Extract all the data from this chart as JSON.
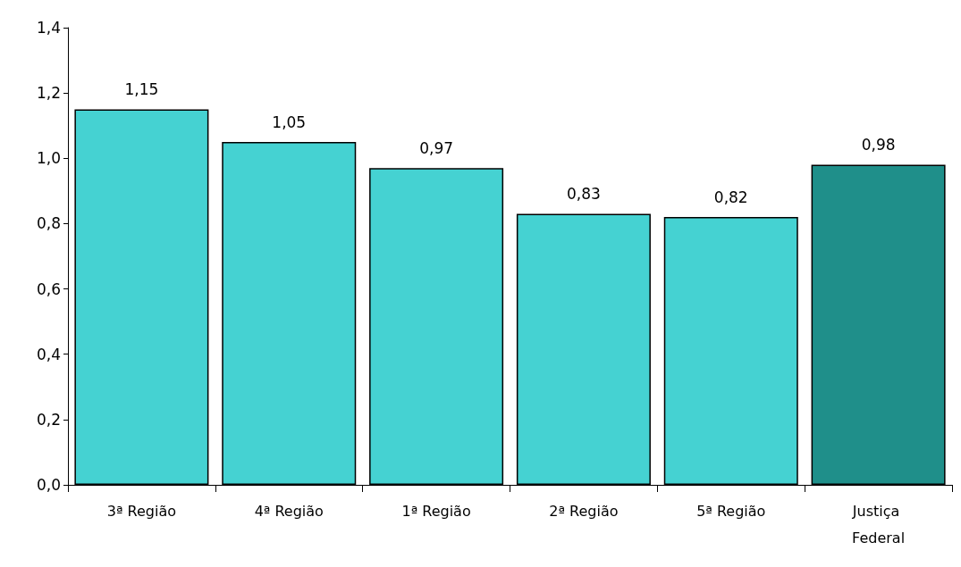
{
  "chart_data": {
    "type": "bar",
    "categories": [
      "3ª Região",
      "4ª Região",
      "1ª Região",
      "2ª Região",
      "5ª Região",
      "Justiça Federal"
    ],
    "values": [
      1.15,
      1.05,
      0.97,
      0.83,
      0.82,
      0.98
    ],
    "colors": [
      "#45d2d2",
      "#45d2d2",
      "#45d2d2",
      "#45d2d2",
      "#45d2d2",
      "#1f8f8a"
    ],
    "value_labels": [
      "1,15",
      "1,05",
      "0,97",
      "0,83",
      "0,82",
      "0,98"
    ],
    "ylim": [
      0,
      1.4
    ],
    "yticks": [
      {
        "value": 0,
        "label": "0,0"
      },
      {
        "value": 0.2,
        "label": "0,2"
      },
      {
        "value": 0.4,
        "label": "0,4"
      },
      {
        "value": 0.6,
        "label": "0,6"
      },
      {
        "value": 0.8,
        "label": "0,8"
      },
      {
        "value": 1.0,
        "label": "1,0"
      },
      {
        "value": 1.2,
        "label": "1,2"
      },
      {
        "value": 1.4,
        "label": "1,4"
      }
    ],
    "grid": false
  }
}
